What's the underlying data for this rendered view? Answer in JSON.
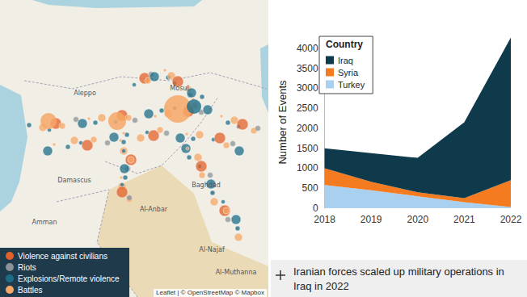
{
  "chart_data": {
    "type": "area",
    "stacked": true,
    "y_label": "Number of Events",
    "legend_title": "Country",
    "legend": "top-left",
    "grid": false,
    "categories": [
      "2018",
      "2019",
      "2020",
      "2021",
      "2022"
    ],
    "series": [
      {
        "name": "Iraq",
        "color": "#0e3a4b",
        "values": [
          500,
          720,
          860,
          1900,
          3570
        ]
      },
      {
        "name": "Syria",
        "color": "#f47b20",
        "values": [
          420,
          210,
          100,
          100,
          670
        ]
      },
      {
        "name": "Turkey",
        "color": "#a9d0ef",
        "values": [
          580,
          450,
          300,
          150,
          30
        ]
      }
    ],
    "ylim": [
      0,
      4300
    ],
    "yticks": [
      0,
      500,
      1000,
      1500,
      2000,
      2500,
      3000,
      3500,
      4000
    ]
  },
  "map": {
    "legend": [
      {
        "label": "Violence against civilians",
        "color": "#e2612b"
      },
      {
        "label": "Riots",
        "color": "#8c9296"
      },
      {
        "label": "Explosions/Remote violence",
        "color": "#1c6e88"
      },
      {
        "label": "Battles",
        "color": "#f6a766"
      }
    ],
    "place_labels": [
      "Aleppo",
      "Mosul",
      "Damascus",
      "Baghdad",
      "Al-Anbar",
      "Al-Najaf",
      "Al-Muthanna",
      "Amman"
    ],
    "attribution": "Leaflet | © OpenStreetMap © Mapbox"
  },
  "annotation": "Iranian forces scaled up military operations in Iraq in 2022"
}
